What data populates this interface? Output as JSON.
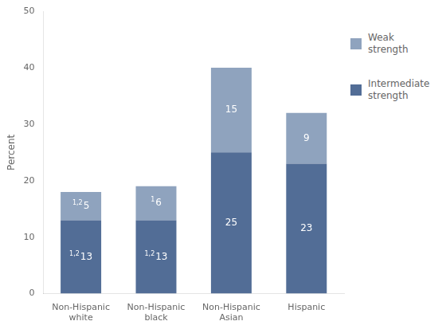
{
  "chart_data": {
    "type": "bar",
    "stacked": true,
    "categories": [
      "Non-Hispanic\nwhite",
      "Non-Hispanic\nblack",
      "Non-Hispanic\nAsian",
      "Hispanic"
    ],
    "series": [
      {
        "name": "Intermediate\nstrength",
        "color": "#526d96",
        "values": [
          13,
          13,
          25,
          23
        ],
        "superscripts": [
          "1,2",
          "1,2",
          null,
          null
        ]
      },
      {
        "name": "Weak\nstrength",
        "color": "#8fa3be",
        "values": [
          5,
          6,
          15,
          9
        ],
        "superscripts": [
          "1,2",
          "1",
          null,
          null
        ]
      }
    ],
    "ylabel": "Percent",
    "ylim": [
      0,
      50
    ],
    "yticks": [
      0,
      10,
      20,
      30,
      40,
      50
    ],
    "grid": false,
    "data_labels": true,
    "legend": "right"
  }
}
